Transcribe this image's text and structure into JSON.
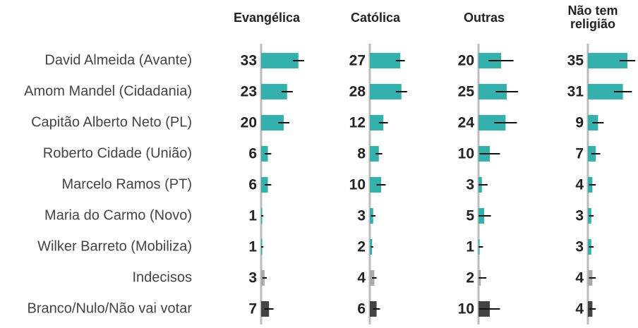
{
  "chart_data": {
    "type": "bar",
    "categories": [
      "David Almeida (Avante)",
      "Amom Mandel (Cidadania)",
      "Capitão Alberto Neto (PL)",
      "Roberto Cidade (União)",
      "Marcelo Ramos (PT)",
      "Maria do Carmo (Novo)",
      "Wilker Barreto (Mobiliza)",
      "Indecisos",
      "Branco/Nulo/Não vai votar"
    ],
    "colors": [
      "#35b1ad",
      "#35b1ad",
      "#35b1ad",
      "#35b1ad",
      "#35b1ad",
      "#35b1ad",
      "#35b1ad",
      "#aaaaaa",
      "#444444"
    ],
    "xlim": [
      0,
      40
    ],
    "series": [
      {
        "name": "Evangélica",
        "values": [
          33,
          23,
          20,
          6,
          6,
          1,
          1,
          3,
          7
        ],
        "errors": [
          5,
          5,
          5,
          3,
          3,
          1,
          1,
          2,
          4
        ]
      },
      {
        "name": "Católica",
        "values": [
          27,
          28,
          12,
          8,
          10,
          3,
          2,
          4,
          6
        ],
        "errors": [
          4,
          5,
          4,
          3,
          4,
          2,
          1,
          2,
          3
        ]
      },
      {
        "name": "Outras",
        "values": [
          20,
          25,
          24,
          10,
          3,
          5,
          1,
          2,
          10
        ],
        "errors": [
          11,
          10,
          10,
          9,
          5,
          6,
          3,
          5,
          9
        ]
      },
      {
        "name": "Não tem religião",
        "values": [
          35,
          31,
          9,
          7,
          4,
          3,
          3,
          4,
          4
        ],
        "errors": [
          7,
          8,
          5,
          4,
          3,
          2,
          2,
          3,
          3
        ]
      }
    ]
  }
}
